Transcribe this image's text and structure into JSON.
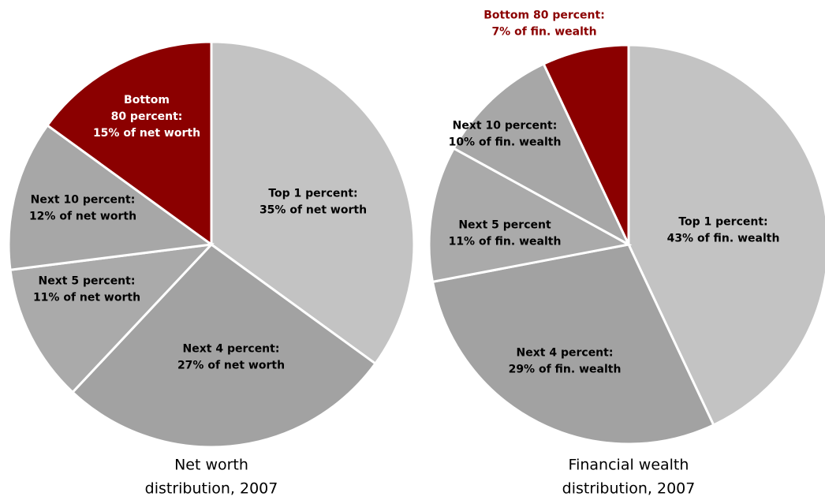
{
  "chart_data": [
    {
      "type": "pie",
      "title": [
        "Net worth",
        "distribution, 2007"
      ],
      "labels": [
        [
          "Top 1 percent:",
          "35% of net worth"
        ],
        [
          "Next 4 percent:",
          "27% of net worth"
        ],
        [
          "Next 5 percent:",
          "11% of net worth"
        ],
        [
          "Next 10 percent:",
          "12% of net worth"
        ],
        [
          "Bottom",
          "80 percent:",
          "15% of net worth"
        ]
      ],
      "values": [
        35,
        27,
        11,
        12,
        15
      ],
      "colors": [
        "#c3c3c3",
        "#a2a2a2",
        "#aaaaaa",
        "#a7a7a7",
        "#8b0000"
      ]
    },
    {
      "type": "pie",
      "title": [
        "Financial wealth",
        "distribution, 2007"
      ],
      "labels": [
        [
          "Top 1 percent:",
          "43% of fin. wealth"
        ],
        [
          "Next 4 percent:",
          "29% of fin. wealth"
        ],
        [
          "Next 5 percent",
          "11% of fin. wealth"
        ],
        [
          "Next 10 percent:",
          "10% of fin. wealth"
        ],
        [
          "Bottom 80 percent:",
          "7% of fin. wealth"
        ]
      ],
      "values": [
        43,
        29,
        11,
        10,
        7
      ],
      "colors": [
        "#c3c3c3",
        "#a2a2a2",
        "#aaaaaa",
        "#a7a7a7",
        "#8b0000"
      ]
    }
  ]
}
